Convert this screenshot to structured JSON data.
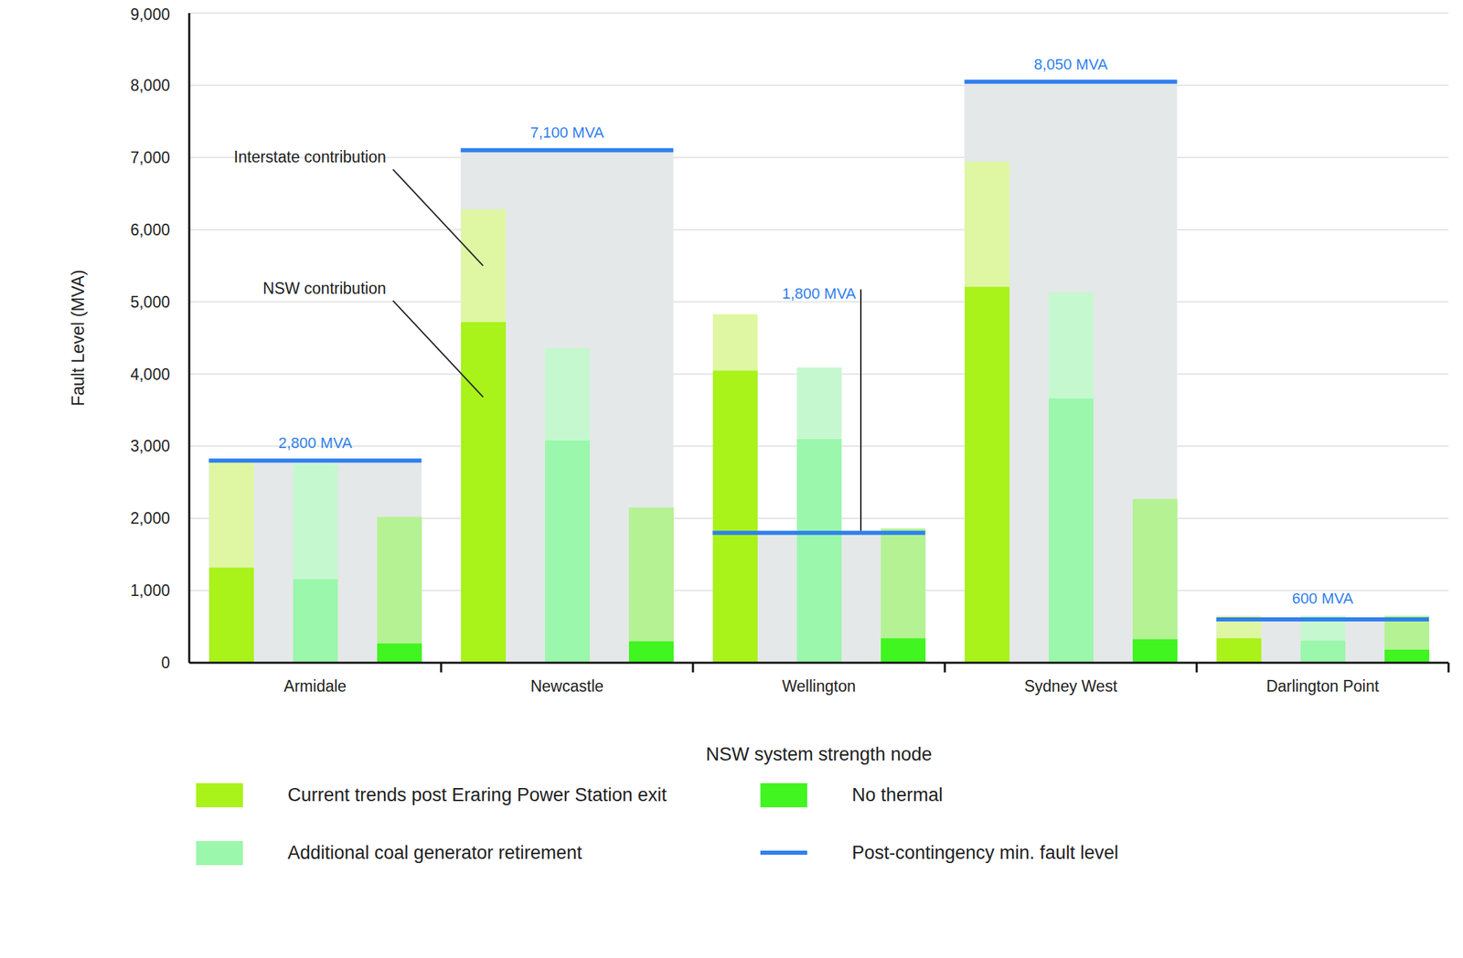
{
  "chart_data": {
    "type": "bar",
    "stacked": true,
    "grid": true,
    "legend": "bottom",
    "x_label": "NSW system strength node",
    "y_label": "Fault Level (MVA)",
    "categories": [
      "Armidale",
      "Newcastle",
      "Wellington",
      "Sydney West",
      "Darlington Point"
    ],
    "ylim": [
      0,
      9000
    ],
    "yticks": [
      0,
      {
        "value": 1000,
        "label": "1,000"
      },
      {
        "value": 2000,
        "label": "2,000"
      },
      {
        "value": 3000,
        "label": "3,000"
      },
      {
        "value": 4000,
        "label": "4,000"
      },
      {
        "value": 5000,
        "label": "5,000"
      },
      {
        "value": 6000,
        "label": "6,000"
      },
      {
        "value": 7000,
        "label": "7,000"
      },
      {
        "value": 8000,
        "label": "8,000"
      },
      {
        "value": 9000,
        "label": "9,000"
      }
    ],
    "series": [
      {
        "name": "Current trends post Eraring Power Station exit",
        "segments": [
          {
            "name": "NSW contribution",
            "color": "#a9f21a",
            "values": [
              1320,
              4720,
              4050,
              5210,
              340
            ]
          },
          {
            "name": "Interstate contribution",
            "color": "#dff7a3",
            "values": [
              1460,
              1560,
              780,
              1730,
              310
            ]
          }
        ]
      },
      {
        "name": "Additional coal generator retirement",
        "segments": [
          {
            "name": "NSW contribution",
            "color": "#9bf7ac",
            "values": [
              1160,
              3080,
              3100,
              3660,
              310
            ]
          },
          {
            "name": "Interstate contribution",
            "color": "#c6f8cf",
            "values": [
              1600,
              1280,
              990,
              1470,
              340
            ]
          }
        ]
      },
      {
        "name": "No thermal",
        "segments": [
          {
            "name": "NSW contribution",
            "color": "#40f520",
            "values": [
              270,
              300,
              340,
              330,
              180
            ]
          },
          {
            "name": "Interstate contribution",
            "color": "#b4f294",
            "values": [
              1750,
              1850,
              1520,
              1940,
              470
            ]
          }
        ]
      }
    ],
    "reference_lines": [
      {
        "name": "Post-contingency min. fault level",
        "color": "#2f80ed",
        "values": [
          2800,
          7100,
          1800,
          8050,
          600
        ],
        "value_labels": [
          "2,800 MVA",
          "7,100 MVA",
          "1,800 MVA",
          "8,050 MVA",
          "600 MVA"
        ]
      }
    ],
    "annotations": [
      "Interstate contribution",
      "NSW contribution"
    ]
  }
}
